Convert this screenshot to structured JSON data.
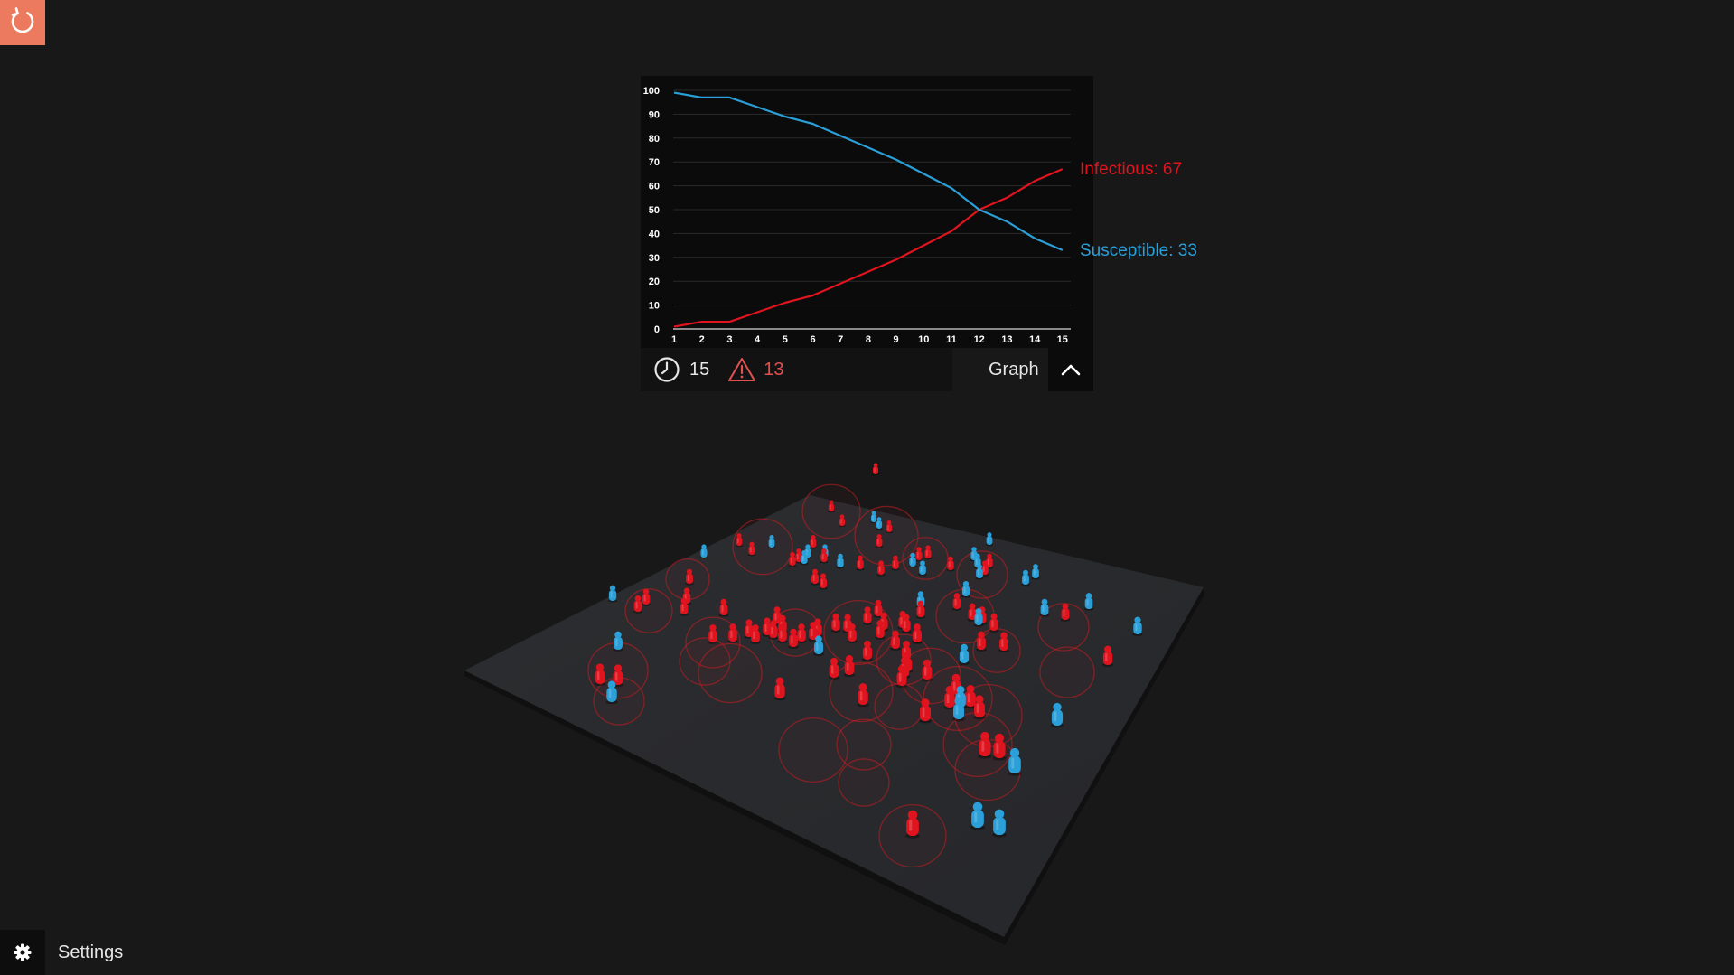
{
  "toolbar": {
    "reset_icon": "reset-icon"
  },
  "stats": {
    "time_icon": "clock-icon",
    "time_value": "15",
    "infected_icon": "warning-icon",
    "infected_value": "13"
  },
  "graph_toggle": {
    "label": "Graph",
    "icon": "chevron-up-icon"
  },
  "settings": {
    "label": "Settings",
    "icon": "gear-icon"
  },
  "colors": {
    "infectious": "#e0141e",
    "susceptible": "#2a9fd8",
    "reset_button": "#ec7a5f",
    "panel": "#0b0b0b",
    "background": "#181818",
    "warning": "#e05050"
  },
  "series_labels": {
    "infectious": "Infectious: 67",
    "susceptible": "Susceptible: 33"
  },
  "chart_data": {
    "type": "line",
    "x": [
      1,
      2,
      3,
      4,
      5,
      6,
      7,
      8,
      9,
      10,
      11,
      12,
      13,
      14,
      15
    ],
    "x_ticks": [
      "1",
      "2",
      "3",
      "4",
      "5",
      "6",
      "7",
      "8",
      "9",
      "10",
      "11",
      "12",
      "13",
      "14",
      "15"
    ],
    "y_ticks": [
      "0",
      "10",
      "20",
      "30",
      "40",
      "50",
      "60",
      "70",
      "80",
      "90",
      "100"
    ],
    "ylim": [
      0,
      100
    ],
    "grid": true,
    "series": [
      {
        "name": "Infectious",
        "values": [
          1,
          3,
          3,
          7,
          11,
          14,
          19,
          24,
          29,
          35,
          41,
          50,
          55,
          62,
          67
        ]
      },
      {
        "name": "Susceptible",
        "values": [
          99,
          97,
          97,
          93,
          89,
          86,
          81,
          76,
          71,
          65,
          59,
          50,
          45,
          38,
          33
        ]
      }
    ]
  },
  "scene": {
    "population_total": 100,
    "infectious_count": 67,
    "susceptible_count": 33
  }
}
